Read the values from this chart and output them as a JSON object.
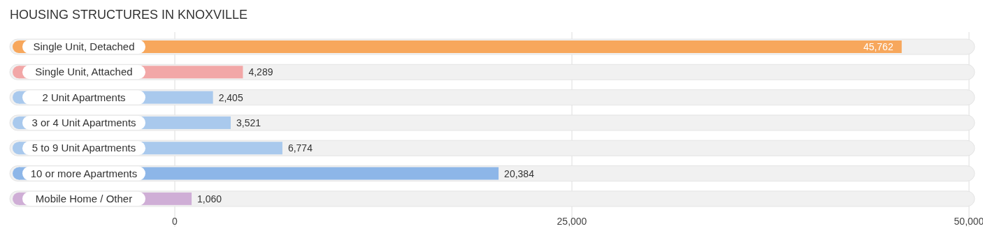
{
  "chart_data": {
    "type": "bar",
    "orientation": "horizontal",
    "title": "HOUSING STRUCTURES IN KNOXVILLE",
    "categories": [
      "Single Unit, Detached",
      "Single Unit, Attached",
      "2 Unit Apartments",
      "3 or 4 Unit Apartments",
      "5 to 9 Unit Apartments",
      "10 or more Apartments",
      "Mobile Home / Other"
    ],
    "values": [
      45762,
      4289,
      2405,
      3521,
      6774,
      20384,
      1060
    ],
    "colors": [
      "#f7a75c",
      "#f2a7a7",
      "#a9c9ed",
      "#a9c9ed",
      "#a9c9ed",
      "#8db6e8",
      "#cfaed6"
    ],
    "value_labels": [
      "45,762",
      "4,289",
      "2,405",
      "3,521",
      "6,774",
      "20,384",
      "1,060"
    ],
    "xlim": [
      0,
      50000
    ],
    "xticks": [
      0,
      {
        "value": 25000,
        "label": "25,000"
      },
      {
        "value": 50000,
        "label": "50,000"
      }
    ],
    "grid": "x"
  }
}
